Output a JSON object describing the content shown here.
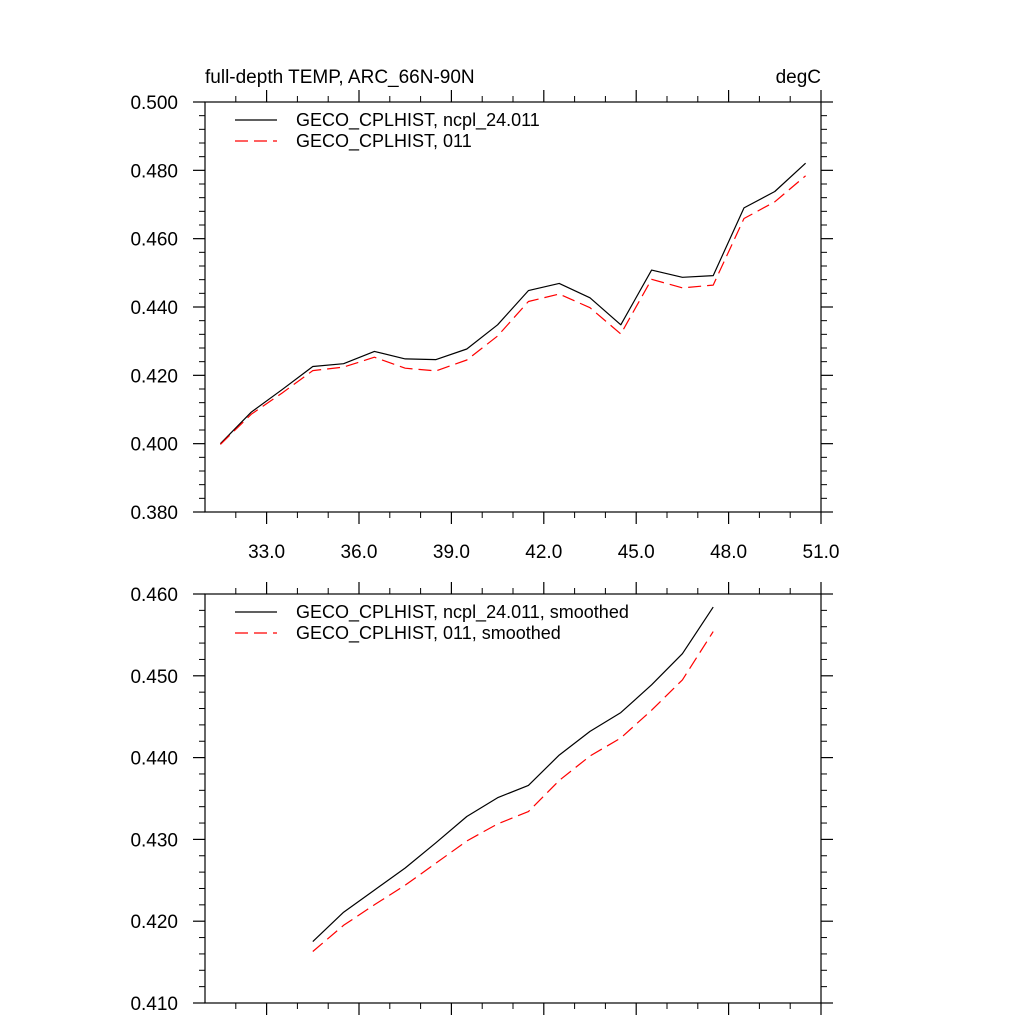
{
  "chart_data": [
    {
      "type": "line",
      "title_left": "full-depth TEMP, ARC_66N-90N",
      "title_right": "degC",
      "xlabel": "",
      "ylabel": "",
      "xlim": [
        31.0,
        51.0
      ],
      "ylim": [
        0.38,
        0.5
      ],
      "x_ticks": [
        33.0,
        36.0,
        39.0,
        42.0,
        45.0,
        48.0,
        51.0
      ],
      "x_tick_labels": [
        "33.0",
        "36.0",
        "39.0",
        "42.0",
        "45.0",
        "48.0",
        "51.0"
      ],
      "y_ticks": [
        0.38,
        0.4,
        0.42,
        0.44,
        0.46,
        0.48,
        0.5
      ],
      "y_tick_labels": [
        "0.380",
        "0.400",
        "0.420",
        "0.440",
        "0.460",
        "0.480",
        "0.500"
      ],
      "x": [
        31.5,
        32.5,
        33.5,
        34.5,
        35.5,
        36.5,
        37.5,
        38.5,
        39.5,
        40.5,
        41.5,
        42.5,
        43.5,
        44.5,
        45.5,
        46.5,
        47.5,
        48.5,
        49.5,
        50.5
      ],
      "series": [
        {
          "name": "GECO_CPLHIST, ncpl_24.011",
          "color": "#000000",
          "dash": "solid",
          "values": [
            0.4,
            0.4092,
            0.4158,
            0.4226,
            0.4234,
            0.427,
            0.4248,
            0.4246,
            0.4277,
            0.4348,
            0.4448,
            0.4469,
            0.4427,
            0.4348,
            0.4508,
            0.4487,
            0.4492,
            0.469,
            0.4738,
            0.4821
          ]
        },
        {
          "name": "GECO_CPLHIST, 011",
          "color": "#ff0000",
          "dash": "dashed",
          "values": [
            0.3998,
            0.4086,
            0.4148,
            0.4214,
            0.4224,
            0.4253,
            0.4221,
            0.4213,
            0.4245,
            0.4315,
            0.4416,
            0.4438,
            0.4398,
            0.4321,
            0.4481,
            0.4456,
            0.4464,
            0.4659,
            0.4708,
            0.4784
          ]
        }
      ]
    },
    {
      "type": "line",
      "xlabel": "",
      "ylabel": "",
      "xlim": [
        31.0,
        51.0
      ],
      "ylim": [
        0.41,
        0.46
      ],
      "x_ticks": [
        33.0,
        36.0,
        39.0,
        42.0,
        45.0,
        48.0,
        51.0
      ],
      "y_ticks": [
        0.41,
        0.42,
        0.43,
        0.44,
        0.45,
        0.46
      ],
      "y_tick_labels": [
        "0.410",
        "0.420",
        "0.430",
        "0.440",
        "0.450",
        "0.460"
      ],
      "x": [
        34.5,
        35.5,
        36.5,
        37.5,
        38.5,
        39.5,
        40.5,
        41.5,
        42.5,
        43.5,
        44.5,
        45.5,
        46.5,
        47.5
      ],
      "series": [
        {
          "name": "GECO_CPLHIST, ncpl_24.011, smoothed",
          "color": "#000000",
          "dash": "solid",
          "values": [
            0.4175,
            0.4211,
            0.4238,
            0.4265,
            0.4296,
            0.4328,
            0.4351,
            0.4366,
            0.4403,
            0.4432,
            0.4455,
            0.4489,
            0.4527,
            0.4584
          ]
        },
        {
          "name": "GECO_CPLHIST, 011, smoothed",
          "color": "#ff0000",
          "dash": "dashed",
          "values": [
            0.4163,
            0.4195,
            0.422,
            0.4244,
            0.4271,
            0.4298,
            0.4319,
            0.4334,
            0.4372,
            0.4402,
            0.4424,
            0.4458,
            0.4495,
            0.4554
          ]
        }
      ]
    }
  ]
}
